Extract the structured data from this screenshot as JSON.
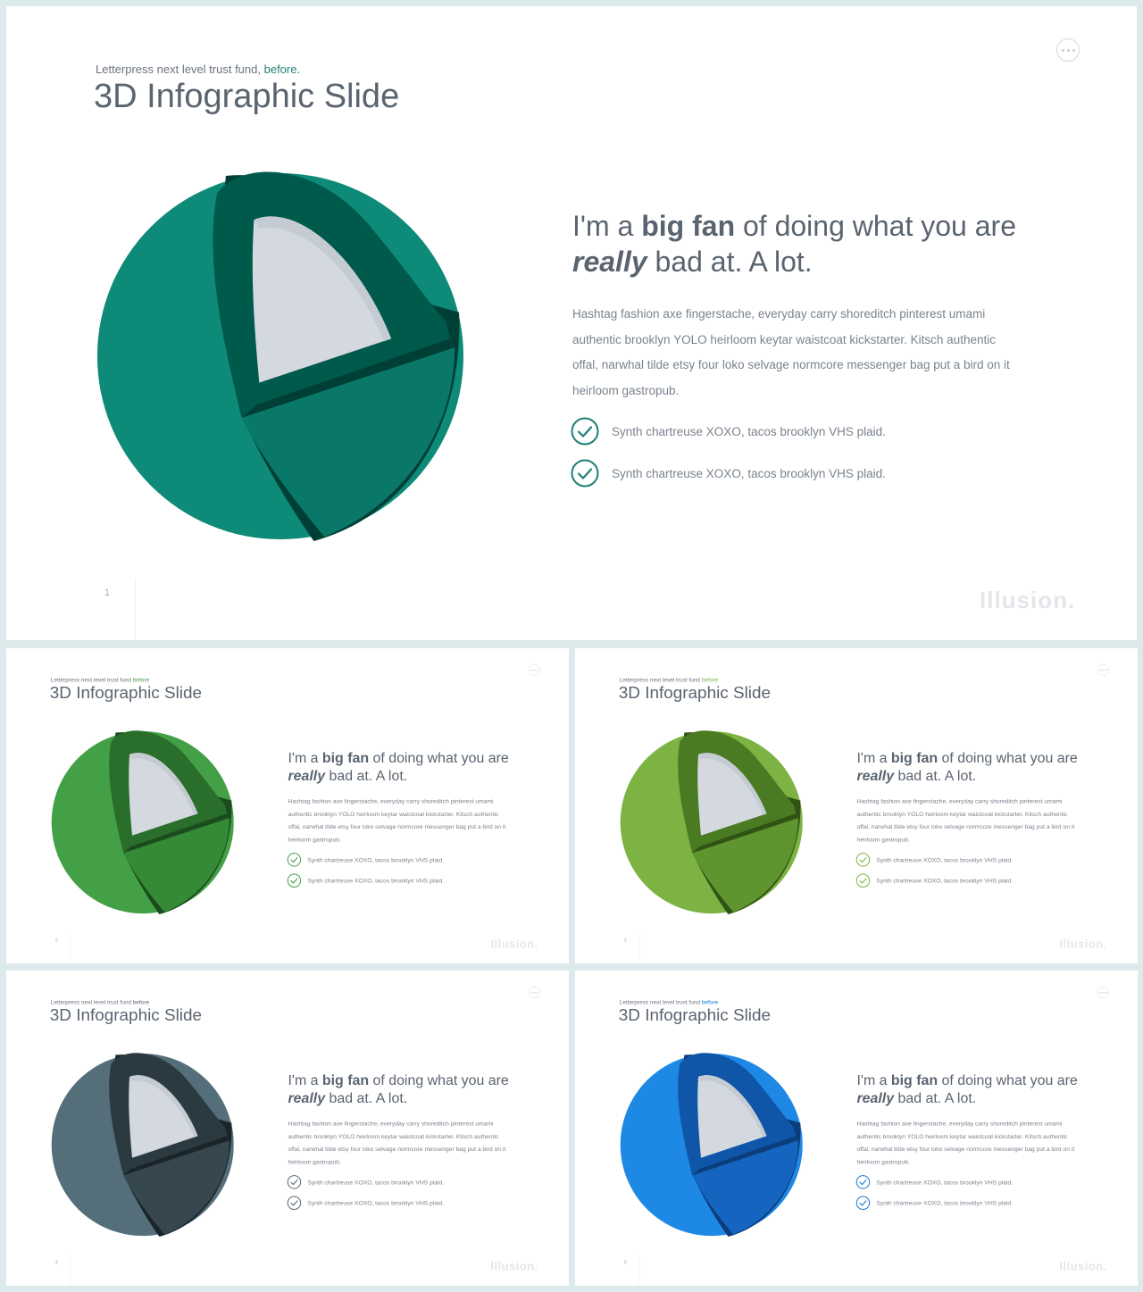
{
  "slides": [
    {
      "subtitle": "Letterpress next level trust fund,",
      "subtitle_accent": "before.",
      "title": "3D Infographic Slide",
      "headline": {
        "pre": "I'm a ",
        "bold": "big fan",
        "mid": " of doing what you are ",
        "italic": "really",
        "post": " bad at. A lot."
      },
      "body": "Hashtag fashion axe fingerstache, everyday carry shoreditch pinterest umami authentic brooklyn YOLO heirloom keytar waistcoat kickstarter. Kitsch authentic offal, narwhal tilde etsy four loko selvage normcore messenger bag put a bird on it heirloom gastropub.",
      "checklist": [
        "Synth chartreuse XOXO, tacos brooklyn VHS plaid.",
        "Synth chartreuse XOXO, tacos brooklyn VHS plaid."
      ],
      "page_number": "1",
      "brand": "Illusion.",
      "colors": {
        "accent": "#1f7f77",
        "outer": "#0e8a78",
        "inner": "#0a7868",
        "dark": "#005a4c",
        "darker": "#003f35"
      }
    },
    {
      "subtitle": "Letterpress next level trust fund",
      "subtitle_accent": "before",
      "title": "3D Infographic Slide",
      "headline": {
        "pre": "I'm a ",
        "bold": "big fan",
        "mid": " of doing what you are ",
        "italic": "really",
        "post": " bad at. A lot."
      },
      "body": "Hashtag fashion axe fingerstache, everyday carry shoreditch pinterest umami authentic brooklyn YOLO heirloom keytar waistcoat kickstarter. Kitsch authentic offal, narwhal tilde etsy four loko selvage normcore messenger bag put a bird on it heirloom gastropub.",
      "checklist": [
        "Synth chartreuse XOXO, tacos brooklyn VHS plaid.",
        "Synth chartreuse XOXO, tacos brooklyn VHS plaid."
      ],
      "page_number": "2",
      "brand": "Illusion.",
      "colors": {
        "accent": "#43a047",
        "outer": "#43a047",
        "inner": "#348a36",
        "dark": "#2a6e2b",
        "darker": "#1b4d1c"
      }
    },
    {
      "subtitle": "Letterpress next level trust fund",
      "subtitle_accent": "before",
      "title": "3D Infographic Slide",
      "headline": {
        "pre": "I'm a ",
        "bold": "big fan",
        "mid": " of doing what you are ",
        "italic": "really",
        "post": " bad at. A lot."
      },
      "body": "Hashtag fashion axe fingerstache, everyday carry shoreditch pinterest umami authentic brooklyn YOLO heirloom keytar waistcoat kickstarter. Kitsch authentic offal, narwhal tilde etsy four loko selvage normcore messenger bag put a bird on it heirloom gastropub.",
      "checklist": [
        "Synth chartreuse XOXO, tacos brooklyn VHS plaid.",
        "Synth chartreuse XOXO, tacos brooklyn VHS plaid."
      ],
      "page_number": "3",
      "brand": "Illusion.",
      "colors": {
        "accent": "#7cb342",
        "outer": "#7cb342",
        "inner": "#5e952f",
        "dark": "#4a7a22",
        "darker": "#2f5313"
      }
    },
    {
      "subtitle": "Letterpress next level trust fund",
      "subtitle_accent": "before",
      "title": "3D Infographic Slide",
      "headline": {
        "pre": "I'm a ",
        "bold": "big fan",
        "mid": " of doing what you are ",
        "italic": "really",
        "post": " bad at. A lot."
      },
      "body": "Hashtag fashion axe fingerstache, everyday carry shoreditch pinterest umami authentic brooklyn YOLO heirloom keytar waistcoat kickstarter. Kitsch authentic offal, narwhal tilde etsy four loko selvage normcore messenger bag put a bird on it heirloom gastropub.",
      "checklist": [
        "Synth chartreuse XOXO, tacos brooklyn VHS plaid.",
        "Synth chartreuse XOXO, tacos brooklyn VHS plaid."
      ],
      "page_number": "4",
      "brand": "Illusion.",
      "colors": {
        "accent": "#5a6470",
        "outer": "#546e7a",
        "inner": "#37474f",
        "dark": "#2b3a41",
        "darker": "#1a252a"
      }
    },
    {
      "subtitle": "Letterpress next level trust fund",
      "subtitle_accent": "before",
      "title": "3D Infographic Slide",
      "headline": {
        "pre": "I'm a ",
        "bold": "big fan",
        "mid": " of doing what you are ",
        "italic": "really",
        "post": " bad at. A lot."
      },
      "body": "Hashtag fashion axe fingerstache, everyday carry shoreditch pinterest umami authentic brooklyn YOLO heirloom keytar waistcoat kickstarter. Kitsch authentic offal, narwhal tilde etsy four loko selvage normcore messenger bag put a bird on it heirloom gastropub.",
      "checklist": [
        "Synth chartreuse XOXO, tacos brooklyn VHS plaid.",
        "Synth chartreuse XOXO, tacos brooklyn VHS plaid."
      ],
      "page_number": "5",
      "brand": "Illusion.",
      "colors": {
        "accent": "#1976d2",
        "outer": "#1e88e5",
        "inner": "#1565c0",
        "dark": "#0f55a8",
        "darker": "#0a3d7a"
      }
    }
  ]
}
